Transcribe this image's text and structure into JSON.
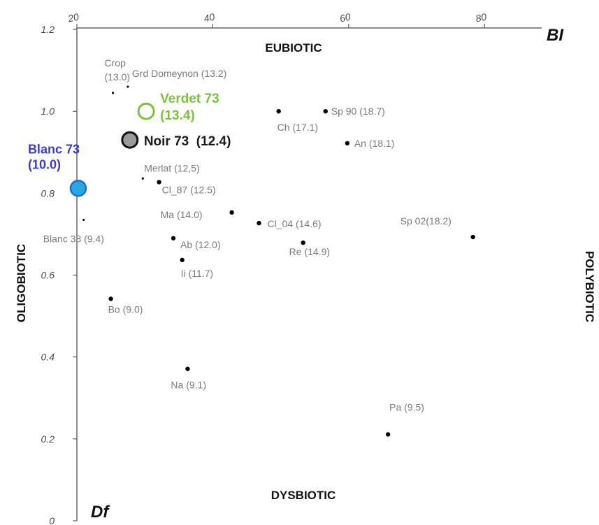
{
  "chart_data": {
    "type": "scatter",
    "x_axis": {
      "name": "BI",
      "ticks": [
        20,
        40,
        60,
        80
      ],
      "range": [
        20,
        87
      ]
    },
    "y_axis": {
      "name": "Df",
      "ticks": [
        0,
        0.2,
        0.4,
        0.6,
        0.8,
        1.0,
        1.2
      ],
      "range": [
        0,
        1.2
      ]
    },
    "quadrant_labels": {
      "top": "EUBIOTIC",
      "bottom": "DYSBIOTIC",
      "left": "OLIGOBIOTIC",
      "right": "POLYBIOTIC"
    },
    "points": [
      {
        "label": "Crop (13.0)",
        "x": 25.3,
        "y": 1.045
      },
      {
        "label": "Grd Domeynon (13.2)",
        "x": 27.5,
        "y": 1.06
      },
      {
        "label": "Verdet 73 (13.4)",
        "x": 30.2,
        "y": 1.0
      },
      {
        "label": "Noir 73  (12.4)",
        "x": 27.8,
        "y": 0.93
      },
      {
        "label": "Blanc 73 (10.0)",
        "x": 20.2,
        "y": 0.812
      },
      {
        "label": "Merlat (12,5)",
        "x": 29.7,
        "y": 0.836
      },
      {
        "label": "Cl_87 (12.5)",
        "x": 32.1,
        "y": 0.827
      },
      {
        "label": "Blanc 38 (9.4)",
        "x": 21.0,
        "y": 0.735
      },
      {
        "label": "Ma (14.0)",
        "x": 42.8,
        "y": 0.753
      },
      {
        "label": "Ab (12.0)",
        "x": 34.2,
        "y": 0.69
      },
      {
        "label": "Ii (11.7)",
        "x": 35.5,
        "y": 0.637
      },
      {
        "label": "Cl_04 (14.6)",
        "x": 46.8,
        "y": 0.727
      },
      {
        "label": "Re (14.9)",
        "x": 53.3,
        "y": 0.679
      },
      {
        "label": "Sp 02(18.2)",
        "x": 78.3,
        "y": 0.693
      },
      {
        "label": "Ch (17.1)",
        "x": 49.7,
        "y": 1.0
      },
      {
        "label": "Sp 90 (18.7)",
        "x": 56.6,
        "y": 1.0
      },
      {
        "label": "An (18.1)",
        "x": 59.8,
        "y": 0.922
      },
      {
        "label": "Bo (9.0)",
        "x": 25.0,
        "y": 0.542
      },
      {
        "label": "Na (9.1)",
        "x": 36.3,
        "y": 0.371
      },
      {
        "label": "Pa (9.5)",
        "x": 65.8,
        "y": 0.211
      }
    ],
    "highlight_colors": {
      "verdet": "#7cc142",
      "noir": "#1a1a1a",
      "blanc": "#3b3bd1",
      "blanc_fill": "#29a8e0",
      "grey_fill": "#9a9a9a"
    }
  }
}
